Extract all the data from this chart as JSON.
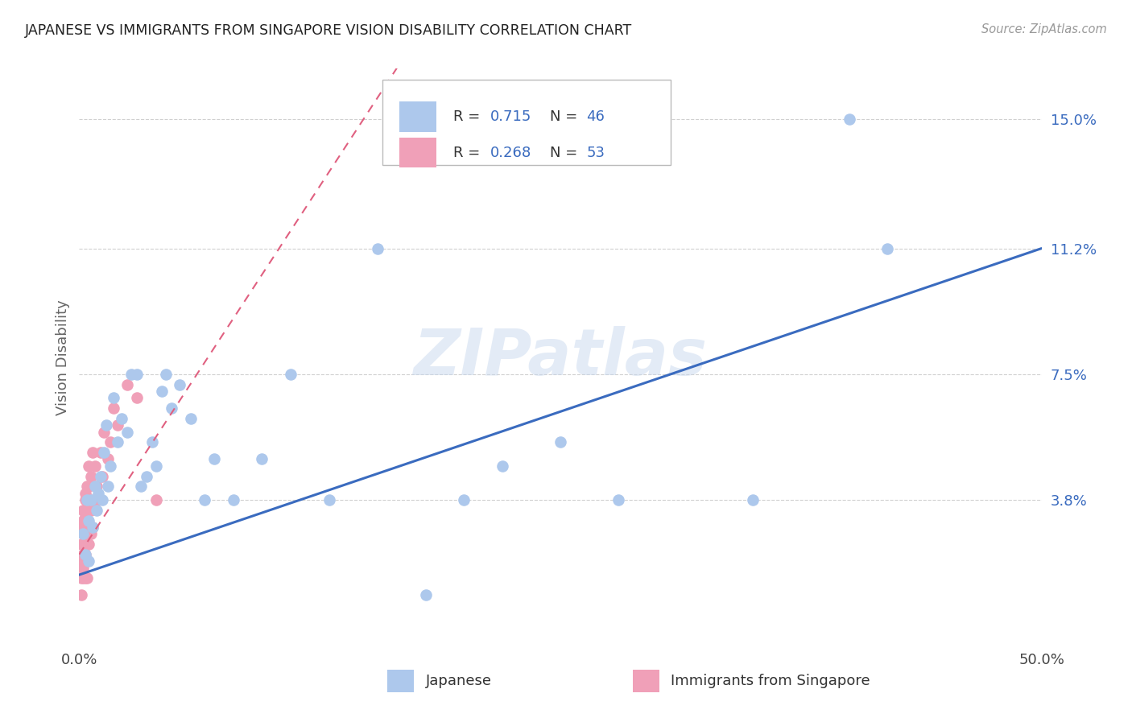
{
  "title": "JAPANESE VS IMMIGRANTS FROM SINGAPORE VISION DISABILITY CORRELATION CHART",
  "source": "Source: ZipAtlas.com",
  "ylabel": "Vision Disability",
  "ytick_labels": [
    "3.8%",
    "7.5%",
    "11.2%",
    "15.0%"
  ],
  "ytick_values": [
    0.038,
    0.075,
    0.112,
    0.15
  ],
  "xlim": [
    0.0,
    0.5
  ],
  "ylim": [
    -0.005,
    0.165
  ],
  "legend_r1": "R =  0.715",
  "legend_n1": "N = 46",
  "legend_r2": "R =  0.268",
  "legend_n2": "N = 53",
  "watermark": "ZIPatlas",
  "bg_color": "#ffffff",
  "grid_color": "#d0d0d0",
  "japanese_color": "#adc8ec",
  "singapore_color": "#f0a0b8",
  "line1_color": "#3a6bbf",
  "line2_color": "#e06080",
  "line1_color_tick": "#3a6bbf",
  "japanese_points_x": [
    0.002,
    0.003,
    0.004,
    0.005,
    0.005,
    0.006,
    0.007,
    0.008,
    0.009,
    0.01,
    0.011,
    0.012,
    0.013,
    0.014,
    0.015,
    0.016,
    0.018,
    0.02,
    0.022,
    0.025,
    0.027,
    0.03,
    0.032,
    0.035,
    0.038,
    0.04,
    0.043,
    0.045,
    0.048,
    0.052,
    0.058,
    0.065,
    0.07,
    0.08,
    0.095,
    0.11,
    0.13,
    0.155,
    0.18,
    0.2,
    0.22,
    0.25,
    0.28,
    0.35,
    0.4,
    0.42
  ],
  "japanese_points_y": [
    0.028,
    0.022,
    0.038,
    0.032,
    0.02,
    0.038,
    0.03,
    0.042,
    0.035,
    0.04,
    0.045,
    0.038,
    0.052,
    0.06,
    0.042,
    0.048,
    0.068,
    0.055,
    0.062,
    0.058,
    0.075,
    0.075,
    0.042,
    0.045,
    0.055,
    0.048,
    0.07,
    0.075,
    0.065,
    0.072,
    0.062,
    0.038,
    0.05,
    0.038,
    0.05,
    0.075,
    0.038,
    0.112,
    0.01,
    0.038,
    0.048,
    0.055,
    0.038,
    0.038,
    0.15,
    0.112
  ],
  "singapore_points_x": [
    0.001,
    0.001,
    0.001,
    0.001,
    0.001,
    0.002,
    0.002,
    0.002,
    0.002,
    0.002,
    0.002,
    0.002,
    0.003,
    0.003,
    0.003,
    0.003,
    0.003,
    0.003,
    0.003,
    0.003,
    0.004,
    0.004,
    0.004,
    0.004,
    0.004,
    0.004,
    0.004,
    0.005,
    0.005,
    0.005,
    0.005,
    0.005,
    0.005,
    0.006,
    0.006,
    0.006,
    0.006,
    0.007,
    0.007,
    0.008,
    0.008,
    0.009,
    0.01,
    0.011,
    0.012,
    0.013,
    0.015,
    0.016,
    0.018,
    0.02,
    0.025,
    0.03,
    0.04
  ],
  "singapore_points_y": [
    0.02,
    0.025,
    0.015,
    0.03,
    0.01,
    0.022,
    0.028,
    0.018,
    0.032,
    0.025,
    0.015,
    0.035,
    0.028,
    0.04,
    0.022,
    0.033,
    0.038,
    0.02,
    0.028,
    0.015,
    0.038,
    0.032,
    0.025,
    0.042,
    0.02,
    0.03,
    0.015,
    0.042,
    0.035,
    0.048,
    0.025,
    0.038,
    0.028,
    0.045,
    0.038,
    0.035,
    0.028,
    0.052,
    0.03,
    0.048,
    0.038,
    0.042,
    0.038,
    0.052,
    0.045,
    0.058,
    0.05,
    0.055,
    0.065,
    0.06,
    0.072,
    0.068,
    0.038
  ],
  "jp_line_x0": 0.0,
  "jp_line_y0": 0.016,
  "jp_line_x1": 0.5,
  "jp_line_y1": 0.112,
  "sg_line_x0": 0.0,
  "sg_line_y0": 0.022,
  "sg_line_x1": 0.165,
  "sg_line_y1": 0.165
}
